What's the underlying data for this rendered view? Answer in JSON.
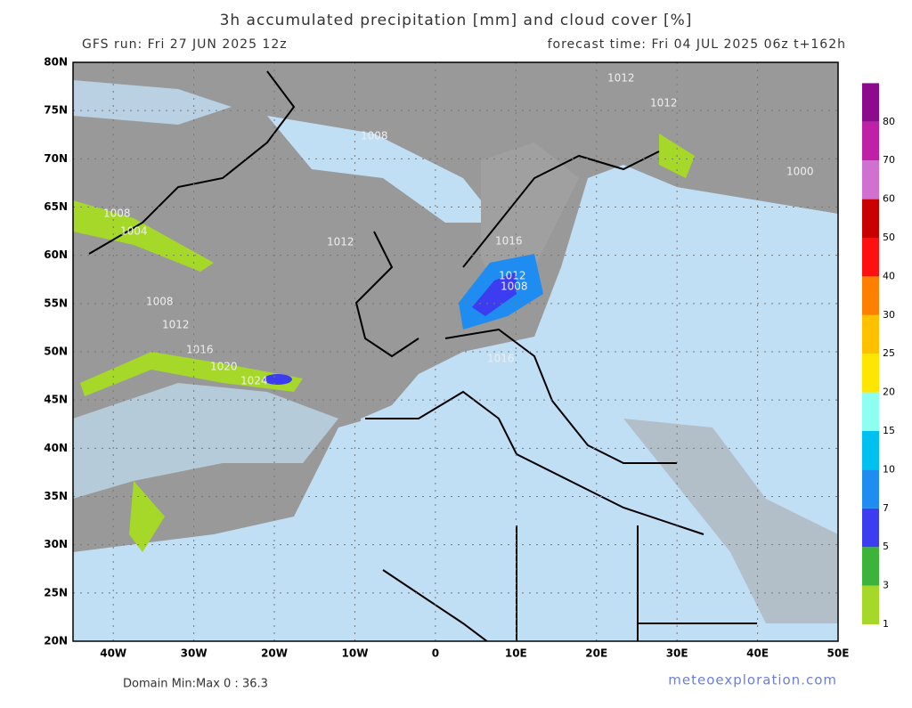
{
  "header": {
    "title": "3h accumulated precipitation [mm] and cloud cover [%]",
    "run": "GFS run: Fri 27 JUN 2025 12z",
    "forecast": "forecast time: Fri 04 JUL 2025 06z  t+162h"
  },
  "map": {
    "xlim": [
      -45,
      50
    ],
    "ylim": [
      20,
      80
    ],
    "xticks": [
      {
        "value": -40,
        "label": "40W"
      },
      {
        "value": -30,
        "label": "30W"
      },
      {
        "value": -20,
        "label": "20W"
      },
      {
        "value": -10,
        "label": "10W"
      },
      0,
      {
        "value": 10,
        "label": "10E"
      },
      {
        "value": 20,
        "label": "20E"
      },
      {
        "value": 30,
        "label": "30E"
      },
      {
        "value": 40,
        "label": "40E"
      },
      {
        "value": 50,
        "label": "50E"
      }
    ],
    "yticks": [
      {
        "value": 20,
        "label": "20N"
      },
      {
        "value": 25,
        "label": "25N"
      },
      {
        "value": 30,
        "label": "30N"
      },
      {
        "value": 35,
        "label": "35N"
      },
      {
        "value": 40,
        "label": "40N"
      },
      {
        "value": 45,
        "label": "45N"
      },
      {
        "value": 50,
        "label": "50N"
      },
      {
        "value": 55,
        "label": "55N"
      },
      {
        "value": 60,
        "label": "60N"
      },
      {
        "value": 65,
        "label": "65N"
      },
      {
        "value": 70,
        "label": "70N"
      },
      {
        "value": 75,
        "label": "75N"
      },
      {
        "value": 80,
        "label": "80N"
      }
    ],
    "contour_labels": [
      "1012",
      "1012",
      "1008",
      "1008",
      "1004",
      "1012",
      "1016",
      "1012",
      "1008",
      "1008",
      "1012",
      "1016",
      "1020",
      "1024",
      "1016",
      "1000"
    ]
  },
  "colorbar": {
    "levels": [
      1,
      3,
      5,
      7,
      10,
      15,
      20,
      25,
      30,
      40,
      50,
      60,
      70,
      80
    ],
    "colors": [
      "#a6d82a",
      "#3cb43c",
      "#3c3cf0",
      "#1e8cf0",
      "#00c0f0",
      "#8cfff0",
      "#ffe600",
      "#ffc000",
      "#ff8000",
      "#ff1010",
      "#c80000",
      "#d070d0",
      "#c020a8",
      "#8c0a8c"
    ]
  },
  "footer": {
    "minmax": "Domain Min:Max 0 : 36.3",
    "site": "meteoexploration.com"
  }
}
